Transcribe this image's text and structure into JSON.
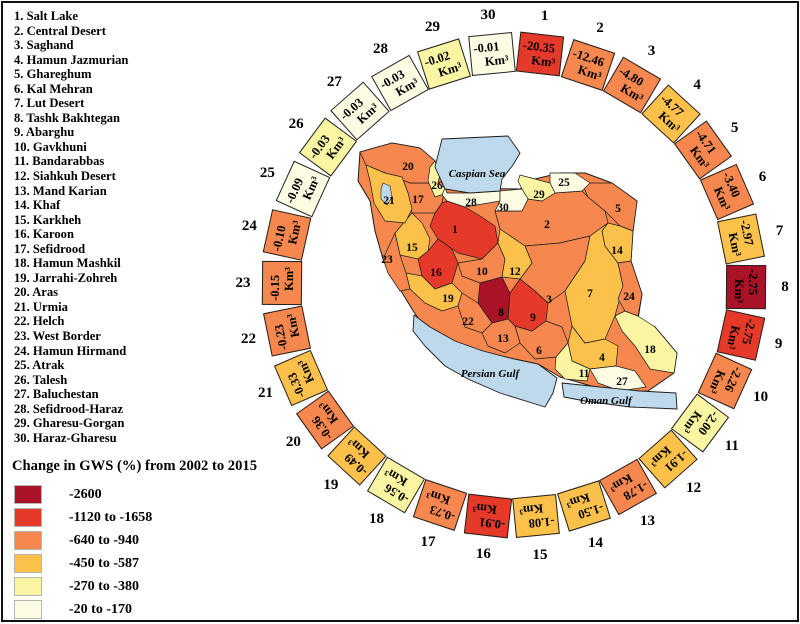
{
  "chart_data": {
    "type": "heatmap",
    "title": "Change in GWS (%) from 2002 to 2015",
    "unit": "Km³",
    "legend_classes": [
      {
        "label": "-2600",
        "color": "#AA1228"
      },
      {
        "label": "-1120 to -1658",
        "color": "#E5392A"
      },
      {
        "label": "-640 to -940",
        "color": "#F6874E"
      },
      {
        "label": "-450 to -587",
        "color": "#FCC14B"
      },
      {
        "label": "-270 to -380",
        "color": "#F9F5A3"
      },
      {
        "label": "-20 to -170",
        "color": "#FEFCE3"
      }
    ],
    "basins": [
      {
        "id": 1,
        "name": "Salt Lake",
        "value": "-20.35",
        "cls": 1
      },
      {
        "id": 2,
        "name": "Central Desert",
        "value": "-12.46",
        "cls": 2
      },
      {
        "id": 3,
        "name": "Saghand",
        "value": "-4.80",
        "cls": 2
      },
      {
        "id": 4,
        "name": "Hamun Jazmurian",
        "value": "-4.77",
        "cls": 3
      },
      {
        "id": 5,
        "name": "Ghareghum",
        "value": "-4.71",
        "cls": 2
      },
      {
        "id": 6,
        "name": "Kal Mehran",
        "value": "-3.40",
        "cls": 2
      },
      {
        "id": 7,
        "name": "Lut Desert",
        "value": "-2.97",
        "cls": 3
      },
      {
        "id": 8,
        "name": "Tashk Bakhtegan",
        "value": "-2.75",
        "cls": 0
      },
      {
        "id": 9,
        "name": "Abarghu",
        "value": "-2.75",
        "cls": 1
      },
      {
        "id": 10,
        "name": "Gavkhuni",
        "value": "-2.26",
        "cls": 2
      },
      {
        "id": 11,
        "name": "Bandarabbas",
        "value": "-2.00",
        "cls": 4
      },
      {
        "id": 12,
        "name": "Siahkuh Desert",
        "value": "-1.91",
        "cls": 3
      },
      {
        "id": 13,
        "name": "Mand Karian",
        "value": "-1.78",
        "cls": 2
      },
      {
        "id": 14,
        "name": "Khaf",
        "value": "-1.50",
        "cls": 3
      },
      {
        "id": 15,
        "name": "Karkheh",
        "value": "-1.08",
        "cls": 3
      },
      {
        "id": 16,
        "name": "Karoon",
        "value": "-0.91",
        "cls": 1
      },
      {
        "id": 17,
        "name": "Sefidrood",
        "value": "-0.73",
        "cls": 2
      },
      {
        "id": 18,
        "name": "Hamun Mashkil",
        "value": "-0.56",
        "cls": 4
      },
      {
        "id": 19,
        "name": "Jarrahi-Zohreh",
        "value": "-0.49",
        "cls": 3
      },
      {
        "id": 20,
        "name": "Aras",
        "value": "-0.36",
        "cls": 2
      },
      {
        "id": 21,
        "name": "Urmia",
        "value": "-0.33",
        "cls": 3
      },
      {
        "id": 22,
        "name": "Helch",
        "value": "-0.23",
        "cls": 2
      },
      {
        "id": 23,
        "name": "West Border",
        "value": "-0.15",
        "cls": 2
      },
      {
        "id": 24,
        "name": "Hamun Hirmand",
        "value": "-0.10",
        "cls": 2
      },
      {
        "id": 25,
        "name": "Atrak",
        "value": "-0.09",
        "cls": 5
      },
      {
        "id": 26,
        "name": "Talesh",
        "value": "-0.03",
        "cls": 4
      },
      {
        "id": 27,
        "name": "Baluchestan",
        "value": "-0.03",
        "cls": 5
      },
      {
        "id": 28,
        "name": "Sefidrood-Haraz",
        "value": "-0.03",
        "cls": 5
      },
      {
        "id": 29,
        "name": "Gharesu-Gorgan",
        "value": "-0.02",
        "cls": 4
      },
      {
        "id": 30,
        "name": "Haraz-Gharesu",
        "value": "-0.01",
        "cls": 5
      }
    ]
  },
  "map": {
    "sea_color": "#BFD9EC",
    "sea_labels": {
      "caspian": "Caspian Sea",
      "persian_gulf": "Persian Gulf",
      "oman_gulf": "Oman Gulf"
    }
  }
}
